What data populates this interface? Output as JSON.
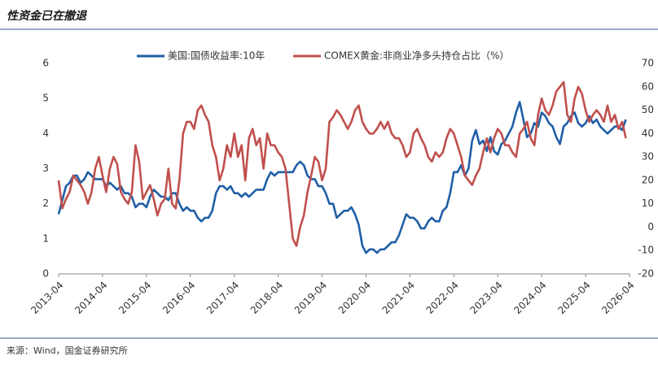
{
  "chart_data": {
    "type": "line",
    "title": "性资金已在撤退",
    "source": "来源：Wind，国金证券研究所",
    "x": [
      "2013-04",
      "2013-05",
      "2013-06",
      "2013-07",
      "2013-08",
      "2013-09",
      "2013-10",
      "2013-11",
      "2013-12",
      "2014-01",
      "2014-02",
      "2014-03",
      "2014-04",
      "2014-05",
      "2014-06",
      "2014-07",
      "2014-08",
      "2014-09",
      "2014-10",
      "2014-11",
      "2014-12",
      "2015-01",
      "2015-02",
      "2015-03",
      "2015-04",
      "2015-05",
      "2015-06",
      "2015-07",
      "2015-08",
      "2015-09",
      "2015-10",
      "2015-11",
      "2015-12",
      "2016-01",
      "2016-02",
      "2016-03",
      "2016-04",
      "2016-05",
      "2016-06",
      "2016-07",
      "2016-08",
      "2016-09",
      "2016-10",
      "2016-11",
      "2016-12",
      "2017-01",
      "2017-02",
      "2017-03",
      "2017-04",
      "2017-05",
      "2017-06",
      "2017-07",
      "2017-08",
      "2017-09",
      "2017-10",
      "2017-11",
      "2017-12",
      "2018-01",
      "2018-02",
      "2018-03",
      "2018-04",
      "2018-05",
      "2018-06",
      "2018-07",
      "2018-08",
      "2018-09",
      "2018-10",
      "2018-11",
      "2018-12",
      "2019-01",
      "2019-02",
      "2019-03",
      "2019-04",
      "2019-05",
      "2019-06",
      "2019-07",
      "2019-08",
      "2019-09",
      "2019-10",
      "2019-11",
      "2019-12",
      "2020-01",
      "2020-02",
      "2020-03",
      "2020-04",
      "2020-05",
      "2020-06",
      "2020-07",
      "2020-08",
      "2020-09",
      "2020-10",
      "2020-11",
      "2020-12",
      "2021-01",
      "2021-02",
      "2021-03",
      "2021-04",
      "2021-05",
      "2021-06",
      "2021-07",
      "2021-08",
      "2021-09",
      "2021-10",
      "2021-11",
      "2021-12",
      "2022-01",
      "2022-02",
      "2022-03",
      "2022-04",
      "2022-05",
      "2022-06",
      "2022-07",
      "2022-08",
      "2022-09",
      "2022-10",
      "2022-11",
      "2022-12",
      "2023-01",
      "2023-02",
      "2023-03",
      "2023-04",
      "2023-05",
      "2023-06",
      "2023-07",
      "2023-08",
      "2023-09",
      "2023-10",
      "2023-11",
      "2023-12",
      "2024-01",
      "2024-02",
      "2024-03",
      "2024-04",
      "2024-05",
      "2024-06",
      "2024-07",
      "2024-08",
      "2024-09",
      "2024-10",
      "2024-11",
      "2024-12",
      "2025-01",
      "2025-02",
      "2025-03",
      "2025-04",
      "2025-05",
      "2025-06",
      "2025-07",
      "2025-08",
      "2025-09",
      "2025-10",
      "2025-11",
      "2025-12",
      "2026-01",
      "2026-02",
      "2026-03"
    ],
    "series": [
      {
        "name": "美国:国债收益率:10年",
        "color": "#1f5fa6",
        "values": [
          1.7,
          2.1,
          2.5,
          2.6,
          2.8,
          2.8,
          2.6,
          2.7,
          2.9,
          2.8,
          2.7,
          2.7,
          2.7,
          2.5,
          2.6,
          2.5,
          2.4,
          2.5,
          2.3,
          2.3,
          2.2,
          1.9,
          2.0,
          2.0,
          1.9,
          2.2,
          2.4,
          2.3,
          2.2,
          2.2,
          2.1,
          2.3,
          2.3,
          2.0,
          1.8,
          1.9,
          1.8,
          1.8,
          1.6,
          1.5,
          1.6,
          1.6,
          1.8,
          2.3,
          2.5,
          2.5,
          2.4,
          2.5,
          2.3,
          2.3,
          2.2,
          2.3,
          2.2,
          2.3,
          2.4,
          2.4,
          2.4,
          2.7,
          2.9,
          2.8,
          2.9,
          2.9,
          2.9,
          2.9,
          2.9,
          3.1,
          3.2,
          3.1,
          2.8,
          2.7,
          2.7,
          2.5,
          2.5,
          2.3,
          2.0,
          2.0,
          1.6,
          1.7,
          1.8,
          1.8,
          1.9,
          1.7,
          1.4,
          0.8,
          0.6,
          0.7,
          0.7,
          0.6,
          0.7,
          0.7,
          0.8,
          0.9,
          0.9,
          1.1,
          1.4,
          1.7,
          1.6,
          1.6,
          1.5,
          1.3,
          1.3,
          1.5,
          1.6,
          1.5,
          1.5,
          1.8,
          1.9,
          2.3,
          2.9,
          2.9,
          3.1,
          2.8,
          3.0,
          3.8,
          4.1,
          3.7,
          3.8,
          3.5,
          3.9,
          3.5,
          3.4,
          3.7,
          3.8,
          4.0,
          4.2,
          4.6,
          4.9,
          4.4,
          3.9,
          4.0,
          4.3,
          4.2,
          4.6,
          4.5,
          4.3,
          4.2,
          3.9,
          3.7,
          4.2,
          4.3,
          4.5,
          4.6,
          4.3,
          4.2,
          4.3,
          4.5,
          4.3,
          4.4,
          4.2,
          4.1,
          4.0,
          4.1,
          4.2,
          4.2,
          4.1,
          4.4
        ]
      },
      {
        "name": "COMEX黄金:非商业净多头持仓占比（%）",
        "color": "#c0504d",
        "axis": "y2",
        "values": [
          20,
          8,
          12,
          15,
          22,
          20,
          18,
          15,
          10,
          15,
          25,
          30,
          22,
          15,
          25,
          30,
          27,
          15,
          12,
          10,
          15,
          35,
          28,
          12,
          15,
          18,
          12,
          5,
          10,
          12,
          25,
          10,
          8,
          20,
          40,
          45,
          45,
          42,
          50,
          52,
          48,
          45,
          35,
          30,
          20,
          25,
          35,
          30,
          40,
          30,
          35,
          20,
          38,
          42,
          35,
          38,
          25,
          40,
          35,
          35,
          32,
          30,
          25,
          10,
          -5,
          -8,
          0,
          5,
          15,
          22,
          30,
          28,
          20,
          25,
          45,
          47,
          50,
          48,
          45,
          42,
          45,
          50,
          52,
          45,
          42,
          40,
          40,
          42,
          45,
          42,
          45,
          40,
          38,
          38,
          35,
          30,
          32,
          40,
          42,
          38,
          35,
          30,
          28,
          32,
          30,
          32,
          38,
          42,
          40,
          35,
          30,
          22,
          20,
          18,
          22,
          25,
          32,
          38,
          32,
          38,
          42,
          40,
          35,
          35,
          32,
          30,
          40,
          42,
          45,
          38,
          35,
          48,
          55,
          50,
          48,
          52,
          58,
          60,
          62,
          48,
          45,
          55,
          60,
          57,
          50,
          45,
          48,
          50,
          48,
          45,
          52,
          45,
          48,
          42,
          45,
          38
        ]
      }
    ],
    "xlim": [
      "2013-04",
      "2026-04"
    ],
    "xticks": [
      "2013-04",
      "2014-04",
      "2015-04",
      "2016-04",
      "2017-04",
      "2018-04",
      "2019-04",
      "2020-04",
      "2021-04",
      "2022-04",
      "2023-04",
      "2024-04",
      "2025-04",
      "2026-04"
    ],
    "ylim": [
      0,
      6
    ],
    "yticks": [
      0,
      1,
      2,
      3,
      4,
      5,
      6
    ],
    "y2lim": [
      -20,
      70
    ],
    "y2ticks": [
      -20,
      -10,
      0,
      10,
      20,
      30,
      40,
      50,
      60,
      70
    ]
  }
}
